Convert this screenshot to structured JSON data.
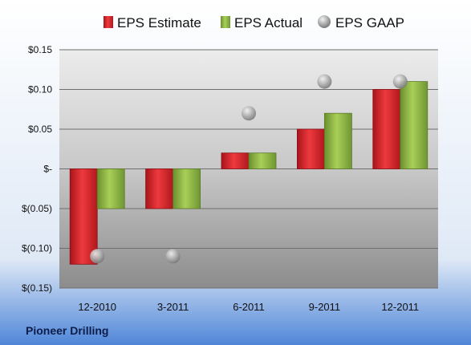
{
  "company": "Pioneer Drilling",
  "colors": {
    "estimate": "#d32024",
    "actual": "#8cb43c",
    "gaap": "#b4b4b4"
  },
  "chart_data": {
    "type": "bar",
    "categories": [
      "12-2010",
      "3-2011",
      "6-2011",
      "9-2011",
      "12-2011"
    ],
    "series": [
      {
        "name": "EPS Estimate",
        "values": [
          -0.12,
          -0.05,
          0.02,
          0.05,
          0.1
        ]
      },
      {
        "name": "EPS Actual",
        "values": [
          -0.05,
          -0.05,
          0.02,
          0.07,
          0.11
        ]
      },
      {
        "name": "EPS GAAP",
        "marker": "circle",
        "values": [
          -0.11,
          -0.11,
          0.07,
          0.11,
          0.11
        ]
      }
    ],
    "ylim": [
      -0.15,
      0.15
    ],
    "yticks": [
      0.15,
      0.1,
      0.05,
      0,
      -0.05,
      -0.1,
      -0.15
    ],
    "ytick_labels": [
      "$0.15",
      "$0.10",
      "$0.05",
      "$-",
      "$(0.05)",
      "$(0.10)",
      "$(0.15)"
    ],
    "legend_position": "top",
    "grid": true
  }
}
